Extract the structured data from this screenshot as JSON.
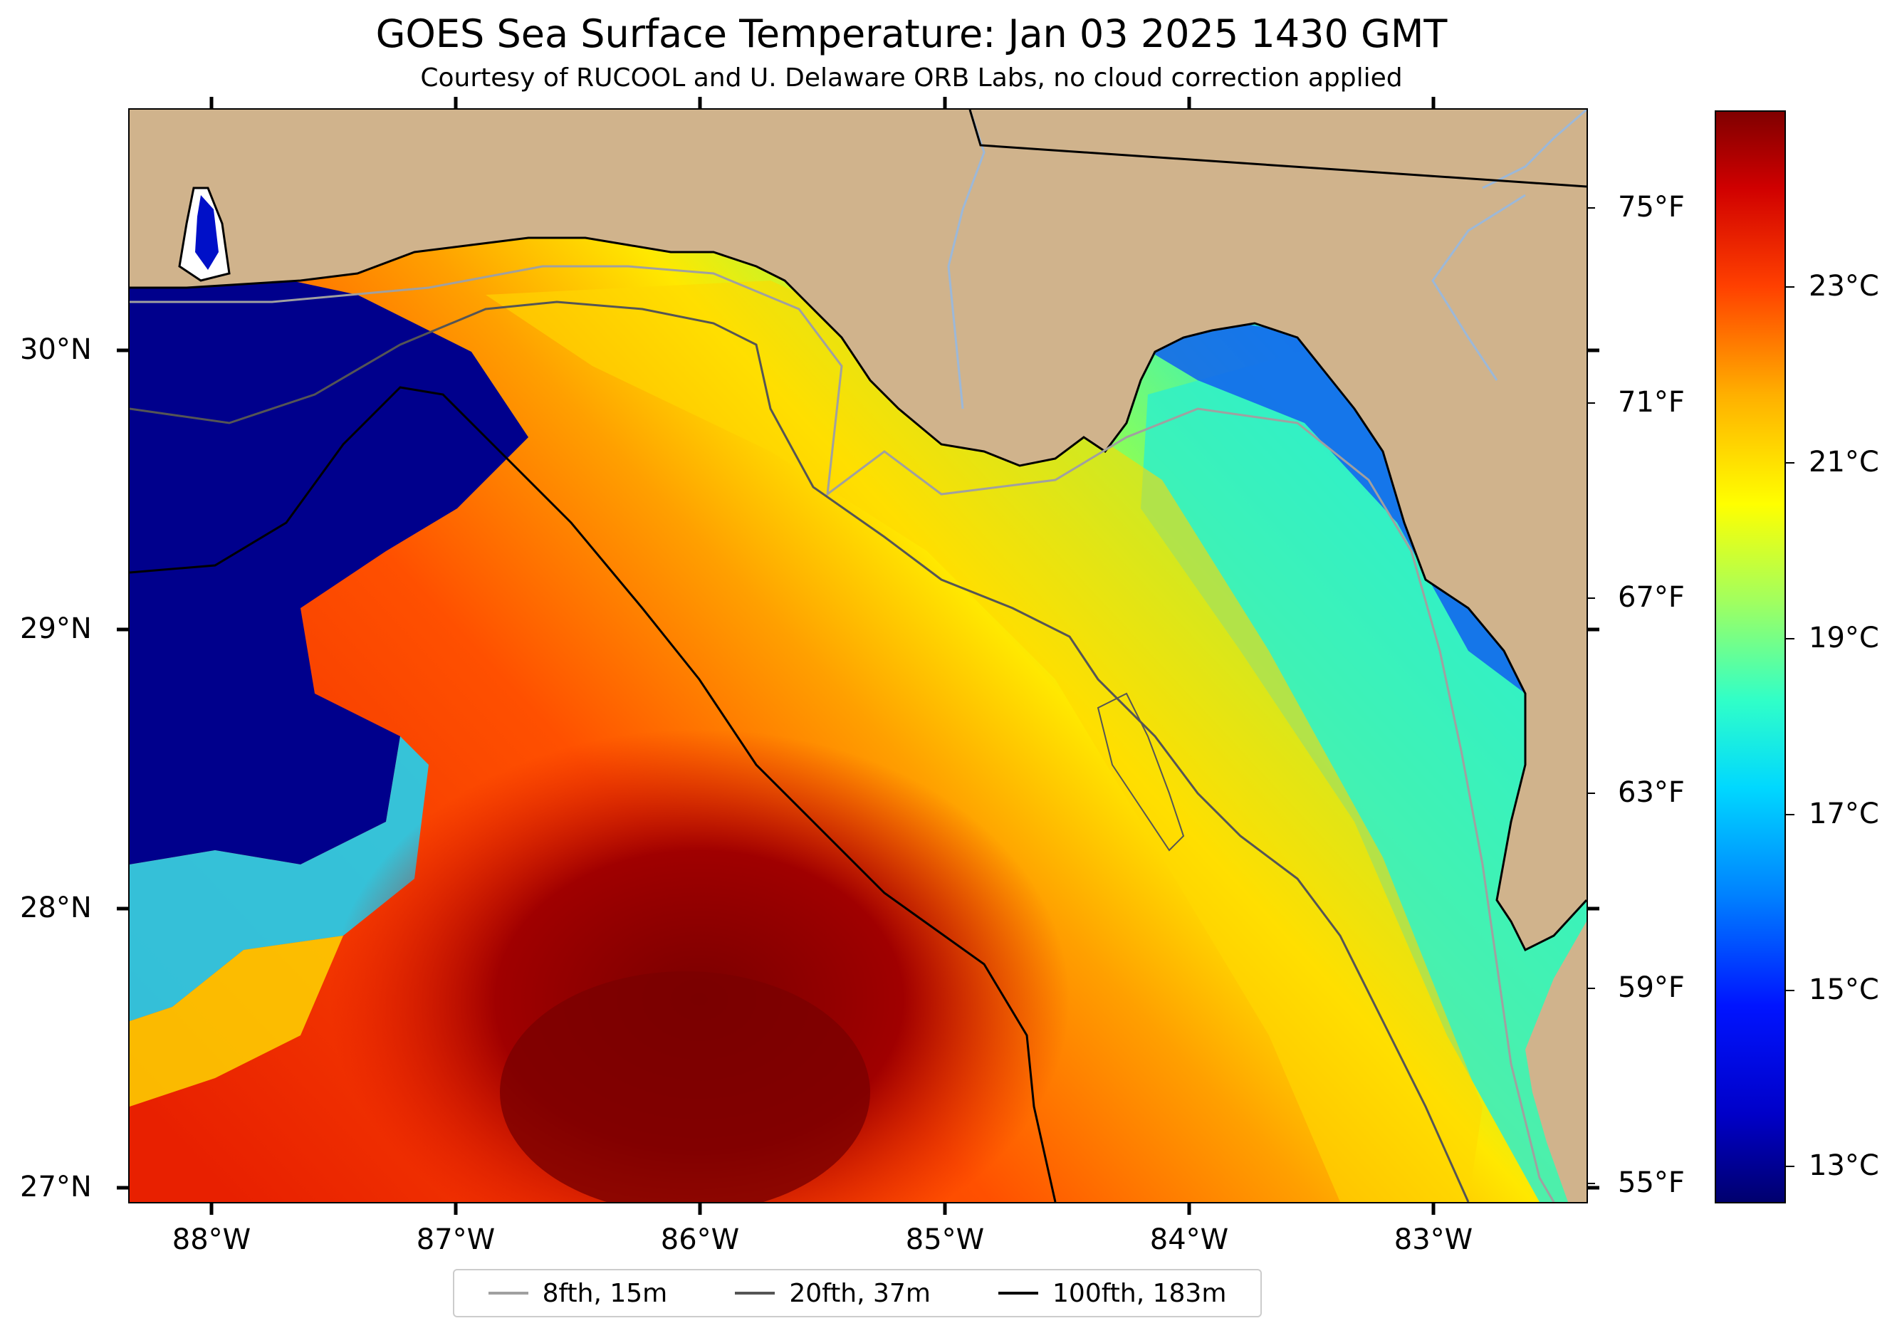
{
  "title": "GOES Sea Surface Temperature: Jan 03 2025 1430 GMT",
  "subtitle": "Courtesy of RUCOOL and U. Delaware ORB Labs, no cloud correction applied",
  "lat_labels": [
    "30°N",
    "29°N",
    "28°N",
    "27°N"
  ],
  "lon_labels": [
    "88°W",
    "87°W",
    "86°W",
    "85°W",
    "84°W",
    "83°W"
  ],
  "fahrenheit_labels": [
    "75°F",
    "71°F",
    "67°F",
    "63°F",
    "59°F",
    "55°F"
  ],
  "celsius_labels": [
    "23°C",
    "21°C",
    "19°C",
    "17°C",
    "15°C",
    "13°C"
  ],
  "legend": [
    {
      "label": "8fth, 15m",
      "color": "#a0a0a0"
    },
    {
      "label": "20fth, 37m",
      "color": "#555555"
    },
    {
      "label": "100fth, 183m",
      "color": "#000000"
    }
  ],
  "colors": {
    "land": "#d0b38c",
    "cold": "#00008c",
    "cool": "#20e0e8",
    "mid": "#ffff10",
    "warm": "#ff5000",
    "hot": "#a00000",
    "river": "#9cb8d8"
  }
}
